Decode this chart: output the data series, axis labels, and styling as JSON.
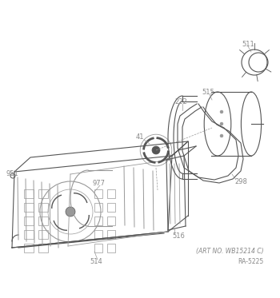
{
  "background_color": "#ffffff",
  "art_no": "(ART NO. WB15214 C)",
  "ra_no": "RA-5225",
  "figsize": [
    3.5,
    3.73
  ],
  "dpi": 100,
  "text_color": "#888888",
  "line_color": "#999999",
  "dark_line": "#555555"
}
